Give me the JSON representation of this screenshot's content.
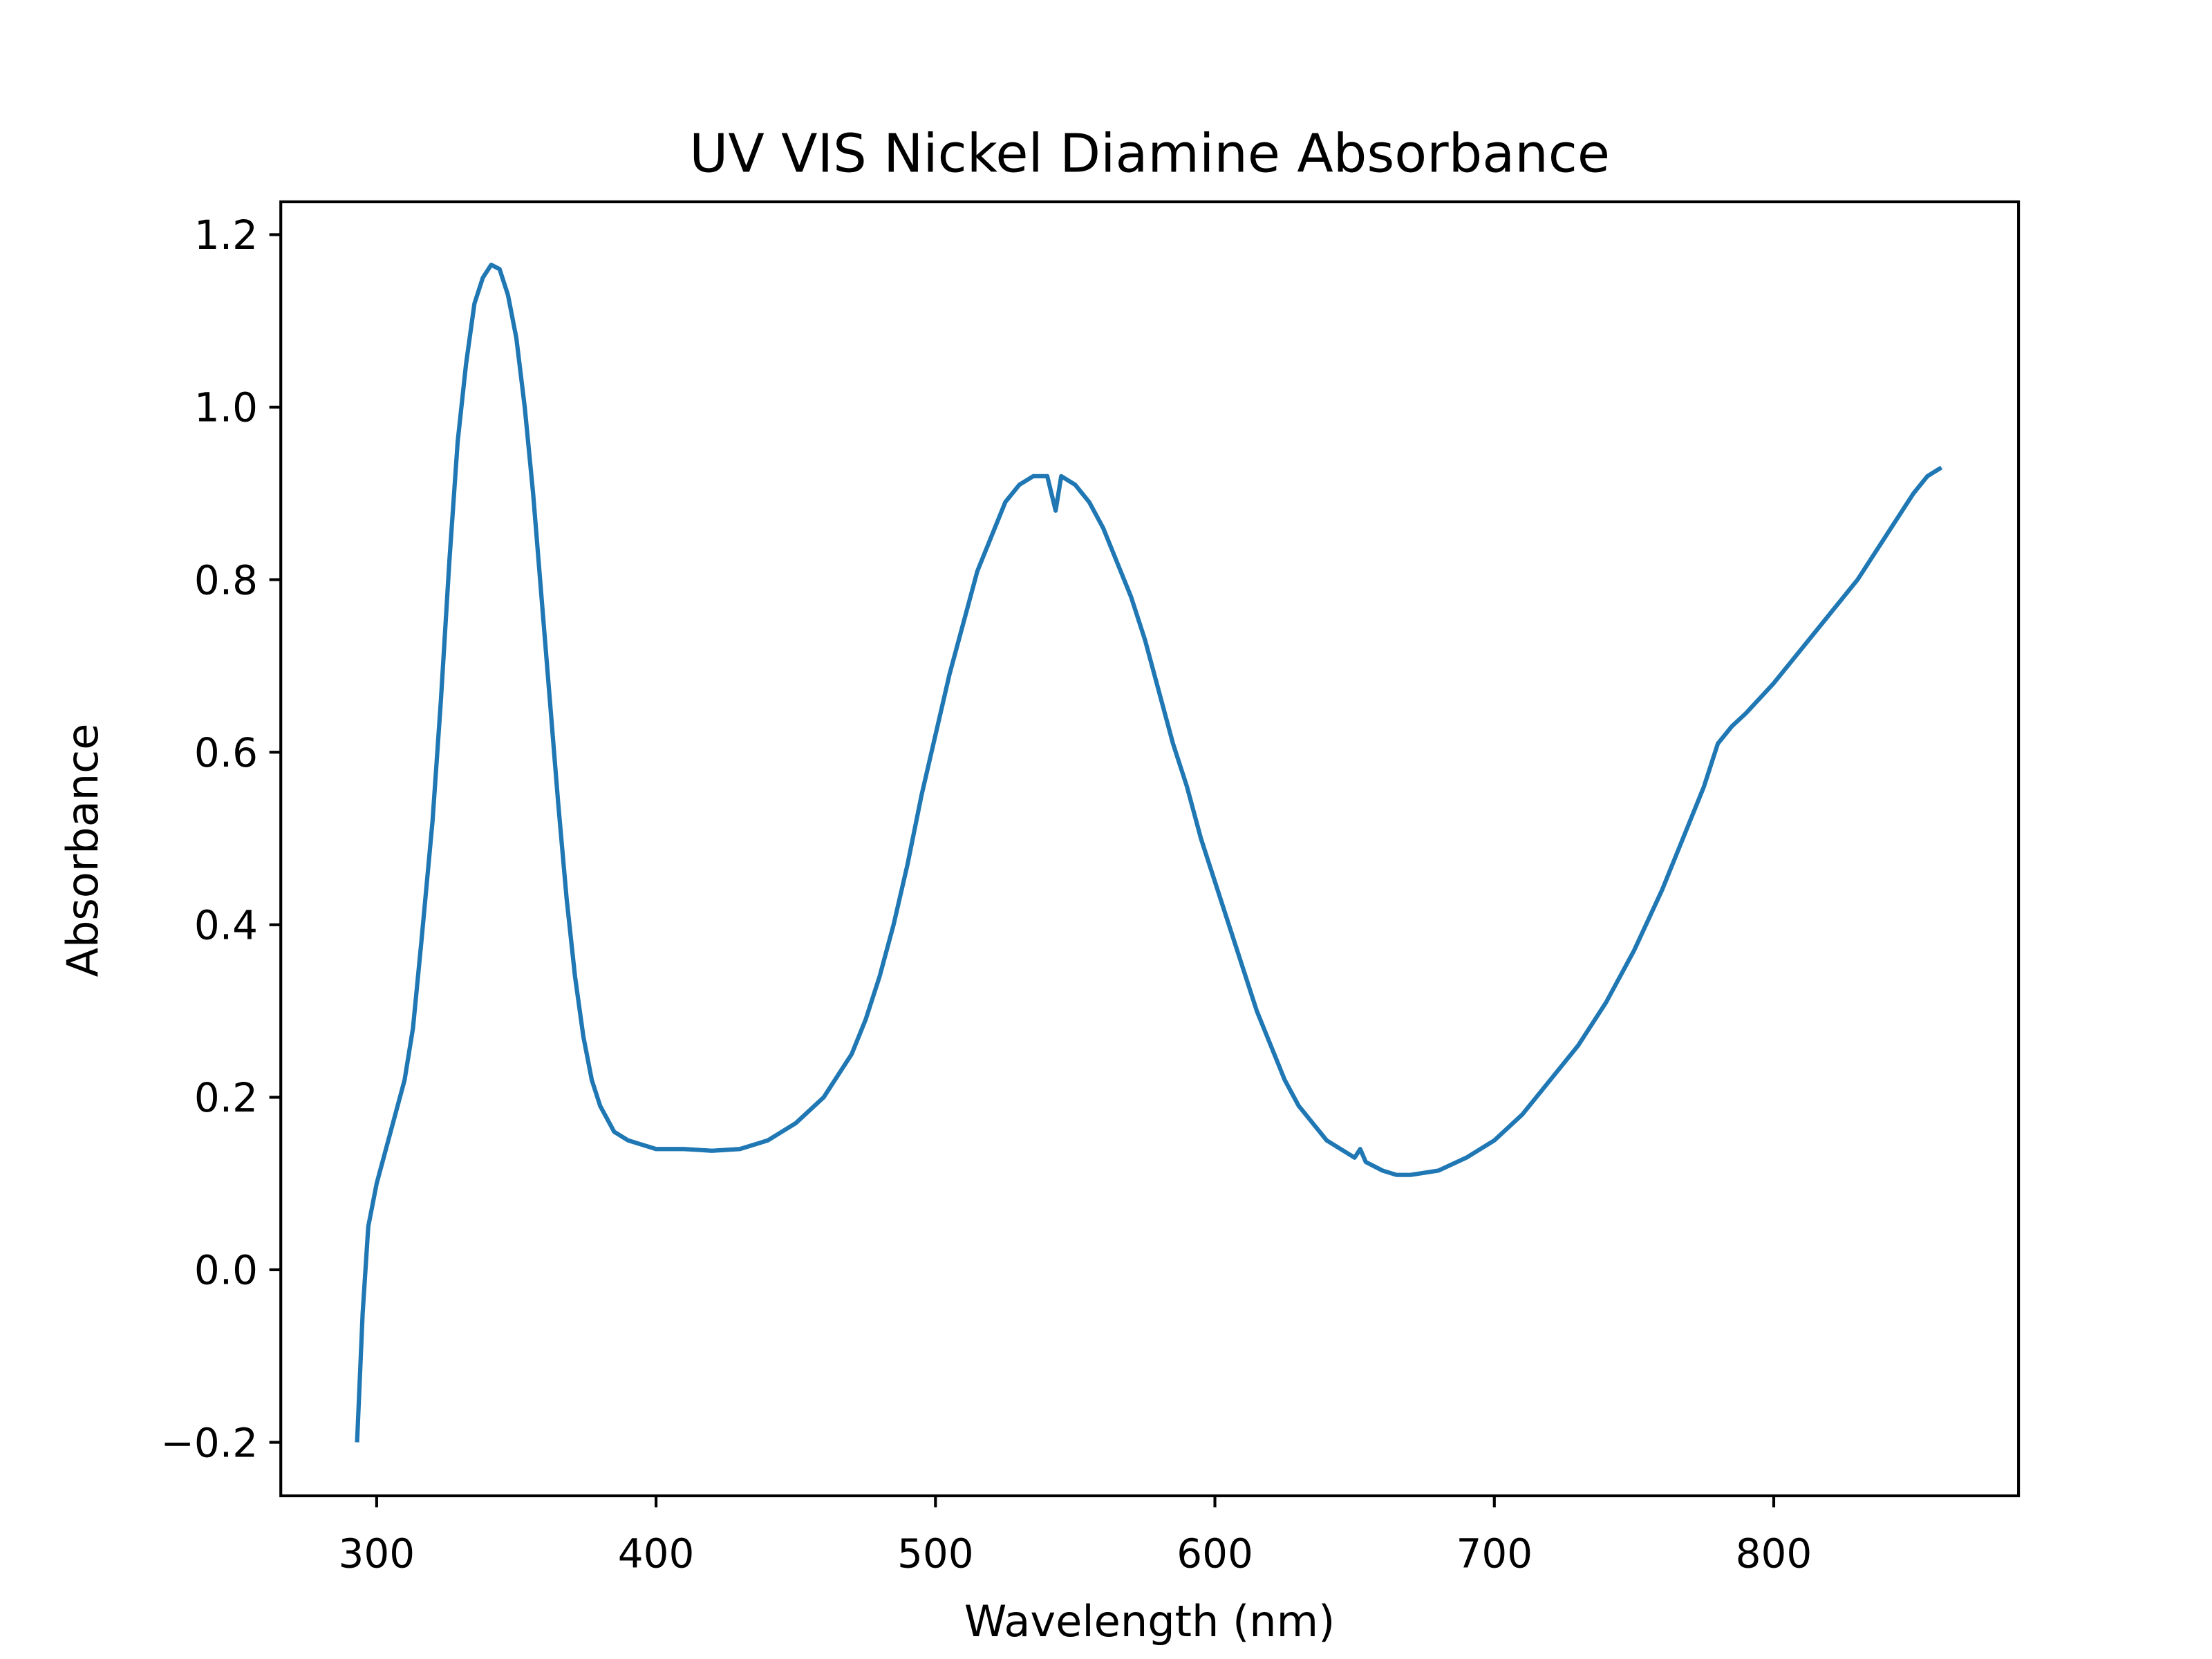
{
  "chart_data": {
    "type": "line",
    "title": "UV VIS Nickel Diamine Absorbance",
    "x_label": "Wavelength (nm)",
    "y_label": "Absorbance",
    "x": [
      293,
      295,
      297,
      300,
      305,
      310,
      313,
      316,
      320,
      323,
      326,
      329,
      332,
      335,
      338,
      341,
      344,
      347,
      350,
      353,
      356,
      359,
      362,
      365,
      368,
      371,
      374,
      377,
      380,
      385,
      390,
      400,
      410,
      420,
      430,
      440,
      450,
      460,
      470,
      475,
      480,
      485,
      490,
      495,
      500,
      505,
      510,
      515,
      520,
      525,
      530,
      535,
      540,
      543,
      545,
      550,
      555,
      560,
      565,
      570,
      575,
      580,
      585,
      590,
      595,
      600,
      605,
      610,
      615,
      620,
      625,
      630,
      635,
      640,
      645,
      650,
      652,
      654,
      660,
      665,
      670,
      680,
      690,
      700,
      710,
      720,
      730,
      740,
      750,
      760,
      770,
      775,
      780,
      785,
      790,
      800,
      810,
      820,
      830,
      840,
      850,
      855,
      860
    ],
    "series": [
      {
        "name": "Absorbance",
        "color": "#1f77b4",
        "values": [
          -0.2,
          -0.05,
          0.05,
          0.1,
          0.16,
          0.22,
          0.28,
          0.38,
          0.52,
          0.66,
          0.82,
          0.96,
          1.05,
          1.12,
          1.15,
          1.165,
          1.16,
          1.13,
          1.08,
          1.0,
          0.9,
          0.78,
          0.66,
          0.54,
          0.43,
          0.34,
          0.27,
          0.22,
          0.19,
          0.16,
          0.15,
          0.14,
          0.14,
          0.138,
          0.14,
          0.15,
          0.17,
          0.2,
          0.25,
          0.29,
          0.34,
          0.4,
          0.47,
          0.55,
          0.62,
          0.69,
          0.75,
          0.81,
          0.85,
          0.89,
          0.91,
          0.92,
          0.92,
          0.88,
          0.92,
          0.91,
          0.89,
          0.86,
          0.82,
          0.78,
          0.73,
          0.67,
          0.61,
          0.56,
          0.5,
          0.45,
          0.4,
          0.35,
          0.3,
          0.26,
          0.22,
          0.19,
          0.17,
          0.15,
          0.14,
          0.13,
          0.14,
          0.125,
          0.115,
          0.11,
          0.11,
          0.115,
          0.13,
          0.15,
          0.18,
          0.22,
          0.26,
          0.31,
          0.37,
          0.44,
          0.52,
          0.56,
          0.61,
          0.63,
          0.645,
          0.68,
          0.72,
          0.76,
          0.8,
          0.85,
          0.9,
          0.92,
          0.93
        ]
      }
    ],
    "xlim": [
      265.7,
      887.6
    ],
    "xticks": [
      300,
      400,
      500,
      600,
      700,
      800
    ],
    "ylim": [
      -0.262,
      1.238
    ],
    "yticks": [
      {
        "value": -0.2,
        "label": "−0.2"
      },
      {
        "value": 0,
        "label": "0.0"
      },
      0.2,
      0.4,
      0.6,
      0.8,
      {
        "value": 1,
        "label": "1.0"
      },
      1.2
    ]
  }
}
